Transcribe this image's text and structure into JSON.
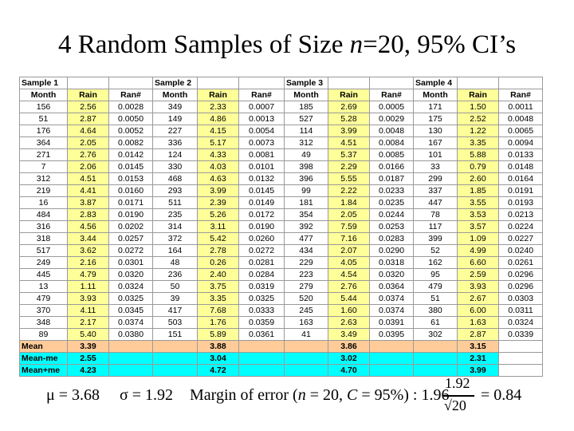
{
  "title": {
    "prefix": "4 Random Samples of Size ",
    "var": "n",
    "suffix": "=20, 95% CI’s"
  },
  "samples": [
    "Sample 1",
    "Sample 2",
    "Sample 3",
    "Sample 4"
  ],
  "col_headers": [
    "Month",
    "Rain",
    "Ran#"
  ],
  "rows": [
    [
      "156",
      "2.56",
      "0.0028",
      "349",
      "2.33",
      "0.0007",
      "185",
      "2.69",
      "0.0005",
      "171",
      "1.50",
      "0.0011"
    ],
    [
      "51",
      "2.87",
      "0.0050",
      "149",
      "4.86",
      "0.0013",
      "527",
      "5.28",
      "0.0029",
      "175",
      "2.52",
      "0.0048"
    ],
    [
      "176",
      "4.64",
      "0.0052",
      "227",
      "4.15",
      "0.0054",
      "114",
      "3.99",
      "0.0048",
      "130",
      "1.22",
      "0.0065"
    ],
    [
      "364",
      "2.05",
      "0.0082",
      "336",
      "5.17",
      "0.0073",
      "312",
      "4.51",
      "0.0084",
      "167",
      "3.35",
      "0.0094"
    ],
    [
      "271",
      "2.76",
      "0.0142",
      "124",
      "4.33",
      "0.0081",
      "49",
      "5.37",
      "0.0085",
      "101",
      "5.88",
      "0.0133"
    ],
    [
      "7",
      "2.06",
      "0.0145",
      "330",
      "4.03",
      "0.0101",
      "398",
      "2.29",
      "0.0166",
      "33",
      "0.79",
      "0.0148"
    ],
    [
      "312",
      "4.51",
      "0.0153",
      "468",
      "4.63",
      "0.0132",
      "396",
      "5.55",
      "0.0187",
      "299",
      "2.60",
      "0.0164"
    ],
    [
      "219",
      "4.41",
      "0.0160",
      "293",
      "3.99",
      "0.0145",
      "99",
      "2.22",
      "0.0233",
      "337",
      "1.85",
      "0.0191"
    ],
    [
      "16",
      "3.87",
      "0.0171",
      "511",
      "2.39",
      "0.0149",
      "181",
      "1.84",
      "0.0235",
      "447",
      "3.55",
      "0.0193"
    ],
    [
      "484",
      "2.83",
      "0.0190",
      "235",
      "5.26",
      "0.0172",
      "354",
      "2.05",
      "0.0244",
      "78",
      "3.53",
      "0.0213"
    ],
    [
      "316",
      "4.56",
      "0.0202",
      "314",
      "3.11",
      "0.0190",
      "392",
      "7.59",
      "0.0253",
      "117",
      "3.57",
      "0.0224"
    ],
    [
      "318",
      "3.44",
      "0.0257",
      "372",
      "5.42",
      "0.0260",
      "477",
      "7.16",
      "0.0283",
      "399",
      "1.09",
      "0.0227"
    ],
    [
      "517",
      "3.62",
      "0.0272",
      "164",
      "2.78",
      "0.0272",
      "434",
      "2.07",
      "0.0290",
      "52",
      "4.99",
      "0.0240"
    ],
    [
      "249",
      "2.16",
      "0.0301",
      "48",
      "0.26",
      "0.0281",
      "229",
      "4.05",
      "0.0318",
      "162",
      "6.60",
      "0.0261"
    ],
    [
      "445",
      "4.79",
      "0.0320",
      "236",
      "2.40",
      "0.0284",
      "223",
      "4.54",
      "0.0320",
      "95",
      "2.59",
      "0.0296"
    ],
    [
      "13",
      "1.11",
      "0.0324",
      "50",
      "3.75",
      "0.0319",
      "279",
      "2.76",
      "0.0364",
      "479",
      "3.93",
      "0.0296"
    ],
    [
      "479",
      "3.93",
      "0.0325",
      "39",
      "3.35",
      "0.0325",
      "520",
      "5.44",
      "0.0374",
      "51",
      "2.67",
      "0.0303"
    ],
    [
      "370",
      "4.11",
      "0.0345",
      "417",
      "7.68",
      "0.0333",
      "245",
      "1.60",
      "0.0374",
      "380",
      "6.00",
      "0.0311"
    ],
    [
      "348",
      "2.17",
      "0.0374",
      "503",
      "1.76",
      "0.0359",
      "163",
      "2.63",
      "0.0391",
      "61",
      "1.63",
      "0.0324"
    ],
    [
      "89",
      "5.40",
      "0.0380",
      "151",
      "5.89",
      "0.0361",
      "41",
      "3.49",
      "0.0395",
      "302",
      "2.87",
      "0.0339"
    ]
  ],
  "summary": {
    "mean": {
      "label": "Mean",
      "values": [
        "3.39",
        "3.88",
        "3.86",
        "3.15"
      ]
    },
    "mean_me": {
      "label": "Mean-me",
      "values": [
        "2.55",
        "3.04",
        "3.02",
        "2.31"
      ]
    },
    "mean_pe": {
      "label": "Mean+me",
      "values": [
        "4.23",
        "4.72",
        "4.70",
        "3.99"
      ]
    }
  },
  "formula": {
    "mu": "μ = 3.68",
    "sigma": "σ = 1.92",
    "moe_text": "Margin of error (",
    "n_part": "n",
    "n_eq": " = 20, ",
    "c_part": "C",
    "c_eq": " = 95%) : 1.96",
    "numerator": "1.92",
    "denominator": "√20",
    "result": "= 0.84"
  }
}
